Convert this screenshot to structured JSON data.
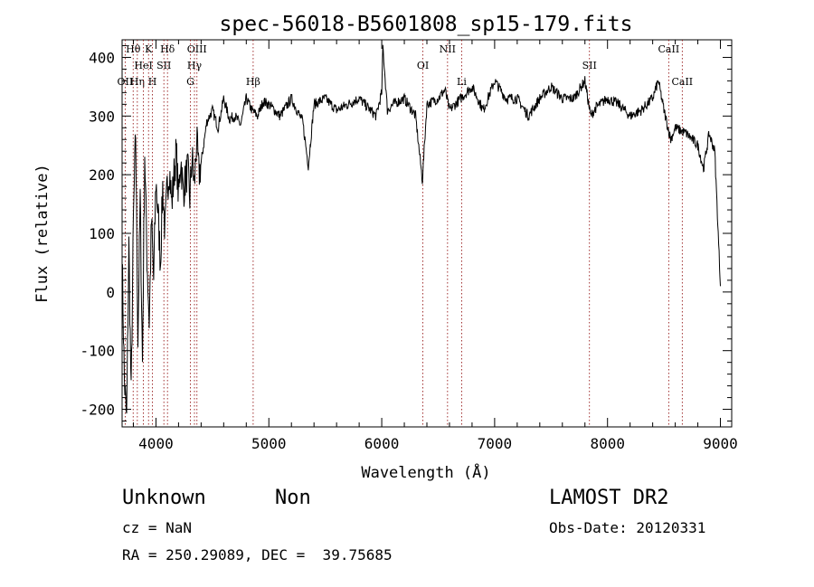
{
  "chart_data": {
    "type": "line",
    "title": "spec-56018-B5601808_sp15-179.fits",
    "xlabel": "Wavelength (Å)",
    "ylabel": "Flux (relative)",
    "xlim": [
      3700,
      9100
    ],
    "ylim": [
      -230,
      430
    ],
    "x_ticks": [
      4000,
      5000,
      6000,
      7000,
      8000,
      9000
    ],
    "y_ticks": [
      -200,
      -100,
      0,
      100,
      200,
      300,
      400
    ],
    "grid": false,
    "legend": "none",
    "line_color": "#000000",
    "marker_color": "#8b0000",
    "series": [
      {
        "x": [
          3700,
          3720,
          3740,
          3760,
          3780,
          3800,
          3820,
          3840,
          3860,
          3880,
          3900,
          3920,
          3940,
          3960,
          3980,
          4000,
          4020,
          4040,
          4060,
          4080,
          4100,
          4120,
          4140,
          4160,
          4180,
          4200,
          4220,
          4240,
          4260,
          4280,
          4300,
          4320,
          4340,
          4360,
          4380,
          4400,
          4450,
          4500,
          4550,
          4600,
          4650,
          4700,
          4750,
          4800,
          4850,
          4900,
          4950,
          5000,
          5100,
          5200,
          5300,
          5350,
          5400,
          5500,
          5600,
          5700,
          5800,
          5900,
          5950,
          6000,
          6010,
          6050,
          6100,
          6200,
          6300,
          6360,
          6400,
          6500,
          6560,
          6600,
          6700,
          6800,
          6900,
          7000,
          7100,
          7200,
          7300,
          7400,
          7500,
          7600,
          7700,
          7800,
          7850,
          7900,
          8000,
          8100,
          8200,
          8300,
          8400,
          8450,
          8500,
          8560,
          8600,
          8700,
          8800,
          8850,
          8900,
          8950,
          9000
        ],
        "values": [
          60,
          -150,
          -220,
          80,
          -180,
          120,
          270,
          -80,
          160,
          -120,
          240,
          60,
          -50,
          120,
          20,
          190,
          130,
          50,
          180,
          100,
          180,
          210,
          150,
          200,
          240,
          160,
          230,
          170,
          190,
          210,
          160,
          230,
          180,
          260,
          200,
          220,
          290,
          310,
          280,
          330,
          295,
          300,
          285,
          330,
          310,
          300,
          325,
          320,
          300,
          330,
          290,
          215,
          320,
          330,
          310,
          320,
          330,
          310,
          300,
          340,
          420,
          310,
          320,
          330,
          300,
          190,
          320,
          330,
          345,
          310,
          330,
          350,
          310,
          360,
          330,
          330,
          300,
          330,
          350,
          330,
          330,
          360,
          300,
          315,
          330,
          320,
          300,
          310,
          330,
          360,
          310,
          260,
          280,
          270,
          250,
          210,
          270,
          240,
          10
        ]
      }
    ],
    "line_markers": [
      {
        "label": "Hθ",
        "x": 3798
      },
      {
        "label": "OII",
        "x": 3727
      },
      {
        "label": "Hη",
        "x": 3835
      },
      {
        "label": "HeI",
        "x": 3889
      },
      {
        "label": "K",
        "x": 3934
      },
      {
        "label": "H",
        "x": 3969
      },
      {
        "label": "SII",
        "x": 4070
      },
      {
        "label": "Hδ",
        "x": 4102
      },
      {
        "label": "OIII",
        "x": 4363
      },
      {
        "label": "Hγ",
        "x": 4341
      },
      {
        "label": "G",
        "x": 4305
      },
      {
        "label": "Hβ",
        "x": 4861
      },
      {
        "label": "OI",
        "x": 6364
      },
      {
        "label": "NII",
        "x": 6583
      },
      {
        "label": "Li",
        "x": 6708
      },
      {
        "label": "SII",
        "x": 7840
      },
      {
        "label": "CaII",
        "x": 8542
      },
      {
        "label": "CaII",
        "x": 8662
      }
    ]
  },
  "footer": {
    "object_type": "Unknown",
    "subclass": "Non",
    "cz": "cz = NaN",
    "coords": "RA = 250.29089, DEC =  39.75685",
    "survey": "LAMOST DR2",
    "obs_date": "Obs-Date: 20120331"
  }
}
